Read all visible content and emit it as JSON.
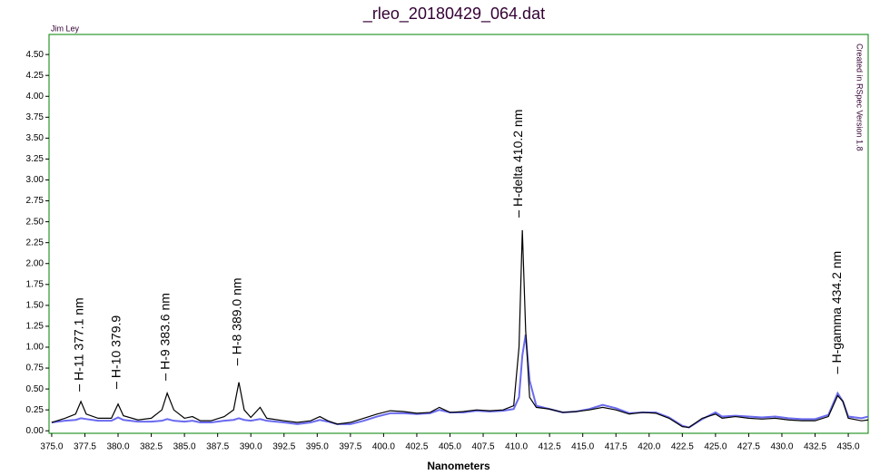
{
  "chart_data": {
    "type": "line",
    "title": "_rleo_20180429_064.dat",
    "author": "Jim Ley",
    "credit": "Created in RSpec Version 1.8",
    "x_label": "Nanometers",
    "xlim": [
      374.8,
      436.5
    ],
    "ylim": [
      -0.03,
      4.74
    ],
    "xticks": [
      {
        "value": 375,
        "label": "375.0"
      },
      {
        "value": 377.5,
        "label": "377.5"
      },
      {
        "value": 380,
        "label": "380.0"
      },
      {
        "value": 382.5,
        "label": "382.5"
      },
      {
        "value": 385,
        "label": "385.0"
      },
      {
        "value": 387.5,
        "label": "387.5"
      },
      {
        "value": 390,
        "label": "390.0"
      },
      {
        "value": 392.5,
        "label": "392.5"
      },
      {
        "value": 395,
        "label": "395.0"
      },
      {
        "value": 397.5,
        "label": "397.5"
      },
      {
        "value": 400,
        "label": "400.0"
      },
      {
        "value": 402.5,
        "label": "402.5"
      },
      {
        "value": 405,
        "label": "405.0"
      },
      {
        "value": 407.5,
        "label": "407.5"
      },
      {
        "value": 410,
        "label": "410.0"
      },
      {
        "value": 412.5,
        "label": "412.5"
      },
      {
        "value": 415,
        "label": "415.0"
      },
      {
        "value": 417.5,
        "label": "417.5"
      },
      {
        "value": 420,
        "label": "420.0"
      },
      {
        "value": 422.5,
        "label": "422.5"
      },
      {
        "value": 425,
        "label": "425.0"
      },
      {
        "value": 427.5,
        "label": "427.5"
      },
      {
        "value": 430,
        "label": "430.0"
      },
      {
        "value": 432.5,
        "label": "432.5"
      },
      {
        "value": 435,
        "label": "435.0"
      }
    ],
    "yticks": [
      {
        "value": 0,
        "label": "0.00"
      },
      {
        "value": 0.25,
        "label": "0.25"
      },
      {
        "value": 0.5,
        "label": "0.50"
      },
      {
        "value": 0.75,
        "label": "0.75"
      },
      {
        "value": 1,
        "label": "1.00"
      },
      {
        "value": 1.25,
        "label": "1.25"
      },
      {
        "value": 1.5,
        "label": "1.50"
      },
      {
        "value": 1.75,
        "label": "1.75"
      },
      {
        "value": 2,
        "label": "2.00"
      },
      {
        "value": 2.25,
        "label": "2.25"
      },
      {
        "value": 2.5,
        "label": "2.50"
      },
      {
        "value": 2.75,
        "label": "2.75"
      },
      {
        "value": 3,
        "label": "3.00"
      },
      {
        "value": 3.25,
        "label": "3.25"
      },
      {
        "value": 3.5,
        "label": "3.50"
      },
      {
        "value": 3.75,
        "label": "3.75"
      },
      {
        "value": 4,
        "label": "4.00"
      },
      {
        "value": 4.25,
        "label": "4.25"
      },
      {
        "value": 4.5,
        "label": "4.50"
      }
    ],
    "x": [
      375,
      376,
      376.8,
      377.2,
      377.6,
      378.5,
      379.5,
      380,
      380.4,
      381.5,
      382.5,
      383.3,
      383.7,
      384.2,
      385,
      385.6,
      386.2,
      387,
      388,
      388.7,
      389.1,
      389.5,
      390,
      390.7,
      391.2,
      392.5,
      393.5,
      394.5,
      395.2,
      395.8,
      396.5,
      397.5,
      398.5,
      399.5,
      400.5,
      401.5,
      402.5,
      403.5,
      404.2,
      405,
      406,
      407,
      408,
      409,
      409.8,
      410.2,
      410.45,
      410.7,
      411,
      411.5,
      412.5,
      413.5,
      414.5,
      415.5,
      416.5,
      417.5,
      418.5,
      419.5,
      420.5,
      421.5,
      422.5,
      423,
      424,
      425,
      425.5,
      426.5,
      427.5,
      428.5,
      429.5,
      430.5,
      431.5,
      432.5,
      433.5,
      434.2,
      434.6,
      435,
      436,
      436.5
    ],
    "series": [
      {
        "color": "#6a6af0",
        "values": [
          0.1,
          0.12,
          0.13,
          0.15,
          0.14,
          0.12,
          0.12,
          0.16,
          0.13,
          0.11,
          0.11,
          0.12,
          0.14,
          0.12,
          0.11,
          0.12,
          0.1,
          0.1,
          0.12,
          0.13,
          0.15,
          0.13,
          0.12,
          0.14,
          0.12,
          0.1,
          0.08,
          0.1,
          0.13,
          0.11,
          0.08,
          0.08,
          0.12,
          0.17,
          0.21,
          0.21,
          0.2,
          0.21,
          0.25,
          0.22,
          0.22,
          0.24,
          0.23,
          0.24,
          0.26,
          0.4,
          0.9,
          1.15,
          0.6,
          0.3,
          0.26,
          0.22,
          0.23,
          0.26,
          0.31,
          0.27,
          0.21,
          0.22,
          0.22,
          0.16,
          0.06,
          0.04,
          0.14,
          0.22,
          0.17,
          0.18,
          0.17,
          0.16,
          0.17,
          0.15,
          0.14,
          0.14,
          0.19,
          0.45,
          0.35,
          0.17,
          0.15,
          0.17
        ]
      },
      {
        "color": "#000000",
        "values": [
          0.1,
          0.15,
          0.2,
          0.35,
          0.2,
          0.15,
          0.15,
          0.32,
          0.18,
          0.13,
          0.15,
          0.25,
          0.45,
          0.25,
          0.15,
          0.17,
          0.12,
          0.12,
          0.17,
          0.25,
          0.58,
          0.25,
          0.16,
          0.28,
          0.15,
          0.12,
          0.1,
          0.12,
          0.17,
          0.12,
          0.08,
          0.1,
          0.15,
          0.2,
          0.24,
          0.23,
          0.21,
          0.22,
          0.28,
          0.22,
          0.23,
          0.25,
          0.24,
          0.25,
          0.3,
          1.0,
          2.4,
          1.2,
          0.4,
          0.28,
          0.26,
          0.22,
          0.23,
          0.25,
          0.28,
          0.25,
          0.2,
          0.22,
          0.21,
          0.15,
          0.05,
          0.04,
          0.15,
          0.2,
          0.15,
          0.17,
          0.15,
          0.14,
          0.15,
          0.13,
          0.12,
          0.12,
          0.17,
          0.42,
          0.35,
          0.15,
          0.12,
          0.13
        ]
      }
    ],
    "annotations": [
      {
        "text": "H-11 377.1 nm",
        "x": 377.1,
        "y": 0.47
      },
      {
        "text": "H-10 379.9",
        "x": 379.9,
        "y": 0.5
      },
      {
        "text": "H-9 383.6 nm",
        "x": 383.6,
        "y": 0.6
      },
      {
        "text": "H-8 389.0 nm",
        "x": 389.0,
        "y": 0.78
      },
      {
        "text": "H-delta 410.2 nm",
        "x": 410.2,
        "y": 2.55
      },
      {
        "text": "H-gamma 434.2 nm",
        "x": 434.2,
        "y": 0.68
      }
    ]
  }
}
